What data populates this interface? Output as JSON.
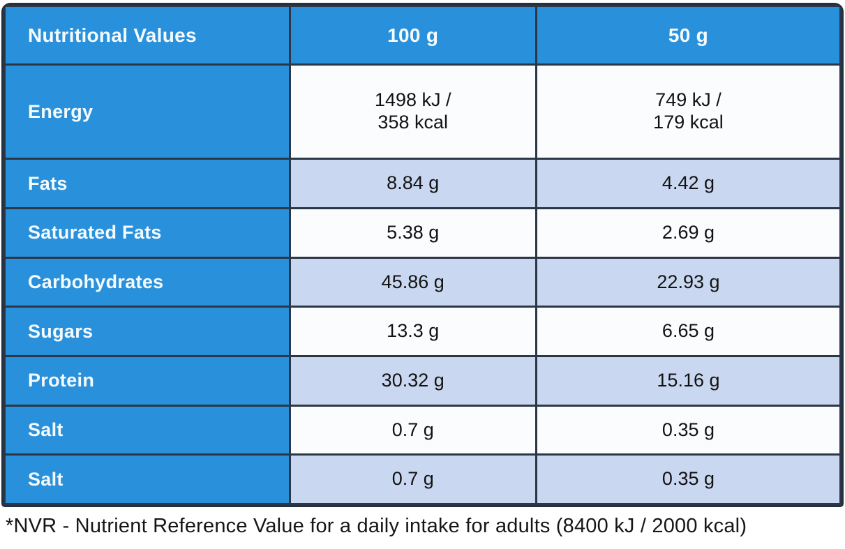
{
  "table": {
    "header": {
      "label": "Nutritional Values",
      "col_100g": "100 g",
      "col_50g": "50 g"
    },
    "rows": [
      {
        "label": "Energy",
        "v100": "1498 kJ /\n358 kcal",
        "v50": "749 kJ /\n179 kcal"
      },
      {
        "label": "Fats",
        "v100": "8.84 g",
        "v50": "4.42 g"
      },
      {
        "label": "Saturated Fats",
        "v100": "5.38 g",
        "v50": "2.69 g"
      },
      {
        "label": "Carbohydrates",
        "v100": "45.86 g",
        "v50": "22.93 g"
      },
      {
        "label": "Sugars",
        "v100": "13.3 g",
        "v50": "6.65 g"
      },
      {
        "label": "Protein",
        "v100": "30.32 g",
        "v50": "15.16 g"
      },
      {
        "label": "Salt",
        "v100": "0.7 g",
        "v50": "0.35 g"
      },
      {
        "label": "Salt",
        "v100": "0.7 g",
        "v50": "0.35 g"
      }
    ]
  },
  "footnote": "*NVR - Nutrient Reference Value for a daily intake for adults (8400 kJ / 2000 kcal)",
  "colors": {
    "accent_blue": "#2991db",
    "alt_row_blue": "#c9d8f0",
    "white_row": "#fbfcfe",
    "grid_border": "#2b3746",
    "header_text": "#f5fafd",
    "value_text": "#121212"
  }
}
